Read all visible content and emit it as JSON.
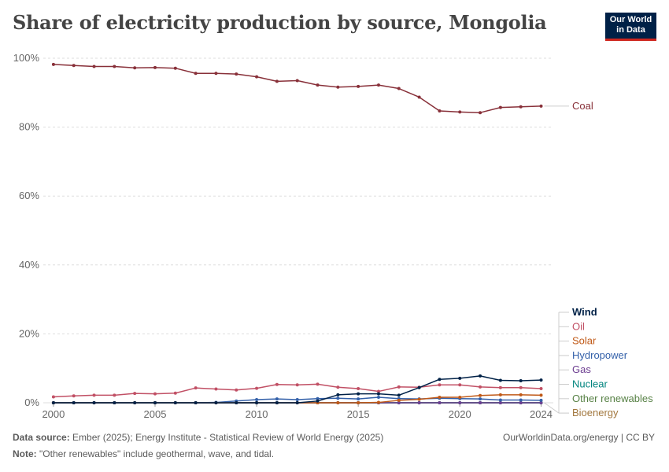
{
  "header": {
    "title": "Share of electricity production by source, Mongolia",
    "logo_line1": "Our World",
    "logo_line2": "in Data"
  },
  "footer": {
    "source_label": "Data source:",
    "source_text": "Ember (2025); Energy Institute - Statistical Review of World Energy (2025)",
    "note_label": "Note:",
    "note_text": "\"Other renewables\" include geothermal, wave, and tidal.",
    "credit": "OurWorldinData.org/energy | CC BY"
  },
  "chart_data": {
    "type": "line",
    "title": "Share of electricity production by source, Mongolia",
    "x_range": [
      1999.5,
      2024.6
    ],
    "ylim": [
      0,
      100
    ],
    "y_ticks": [
      0,
      20,
      40,
      60,
      80,
      100
    ],
    "y_tick_labels": [
      "0%",
      "20%",
      "40%",
      "60%",
      "80%",
      "100%"
    ],
    "x_ticks": [
      2000,
      2005,
      2010,
      2015,
      2020,
      2024
    ],
    "x_tick_labels": [
      "2000",
      "2005",
      "2010",
      "2015",
      "2020",
      "2024"
    ],
    "grid": "horizontal dashed",
    "x": [
      2000,
      2001,
      2002,
      2003,
      2004,
      2005,
      2006,
      2007,
      2008,
      2009,
      2010,
      2011,
      2012,
      2013,
      2014,
      2015,
      2016,
      2017,
      2018,
      2019,
      2020,
      2021,
      2022,
      2023,
      2024
    ],
    "series": [
      {
        "name": "Coal",
        "color": "#883039",
        "values": [
          98.2,
          97.9,
          97.6,
          97.6,
          97.2,
          97.3,
          97.1,
          95.6,
          95.6,
          95.4,
          94.6,
          93.3,
          93.5,
          92.2,
          91.6,
          91.8,
          92.2,
          91.2,
          88.7,
          84.7,
          84.4,
          84.2,
          85.7,
          85.9,
          86.1
        ]
      },
      {
        "name": "Wind",
        "color": "#002147",
        "values": [
          0,
          0,
          0,
          0,
          0,
          0,
          0,
          0,
          0,
          0,
          0,
          0,
          0,
          0.5,
          2.3,
          2.6,
          2.6,
          2.2,
          4.4,
          6.8,
          7.1,
          7.8,
          6.5,
          6.4,
          6.6
        ]
      },
      {
        "name": "Oil",
        "color": "#c15065",
        "values": [
          1.7,
          2.0,
          2.2,
          2.2,
          2.7,
          2.6,
          2.8,
          4.3,
          4.0,
          3.7,
          4.2,
          5.3,
          5.2,
          5.4,
          4.5,
          4.1,
          3.3,
          4.6,
          4.5,
          5.2,
          5.2,
          4.6,
          4.4,
          4.4,
          4.1
        ]
      },
      {
        "name": "Solar",
        "color": "#c05917",
        "values": [
          0,
          0,
          0,
          0,
          0,
          0,
          0,
          0,
          0,
          0,
          0,
          0,
          0,
          0,
          0,
          0,
          0.1,
          0.7,
          1.0,
          1.6,
          1.6,
          2.1,
          2.3,
          2.3,
          2.2
        ]
      },
      {
        "name": "Hydropower",
        "color": "#3360a9",
        "values": [
          0,
          0,
          0,
          0,
          0,
          0,
          0,
          0,
          0.1,
          0.5,
          0.9,
          1.1,
          0.9,
          1.2,
          1.3,
          1.1,
          1.6,
          1.2,
          1.1,
          1.3,
          1.2,
          1.1,
          0.8,
          0.8,
          0.7
        ]
      },
      {
        "name": "Gas",
        "color": "#6d3e91",
        "values": [
          0,
          0,
          0,
          0,
          0,
          0,
          0,
          0,
          0,
          0,
          0,
          0,
          0,
          0,
          0,
          0,
          0,
          0,
          0,
          0,
          0,
          0,
          0,
          0,
          0
        ]
      },
      {
        "name": "Nuclear",
        "color": "#00847e",
        "values": [
          0,
          0,
          0,
          0,
          0,
          0,
          0,
          0,
          0,
          0,
          0,
          0,
          0,
          0,
          0,
          0,
          0,
          0,
          0,
          0,
          0,
          0,
          0,
          0,
          0
        ]
      },
      {
        "name": "Other renewables",
        "color": "#578145",
        "values": [
          0,
          0,
          0,
          0,
          0,
          0,
          0,
          0,
          0,
          0,
          0,
          0,
          0,
          0,
          0,
          0,
          0,
          0,
          0,
          0,
          0,
          0,
          0,
          0,
          0
        ]
      },
      {
        "name": "Bioenergy",
        "color": "#a2773e",
        "values": [
          0,
          0,
          0,
          0,
          0,
          0,
          0,
          0,
          0,
          0,
          0,
          0,
          0,
          0,
          0,
          0,
          0,
          0,
          0,
          0,
          0,
          0,
          0,
          0,
          0
        ]
      }
    ]
  }
}
